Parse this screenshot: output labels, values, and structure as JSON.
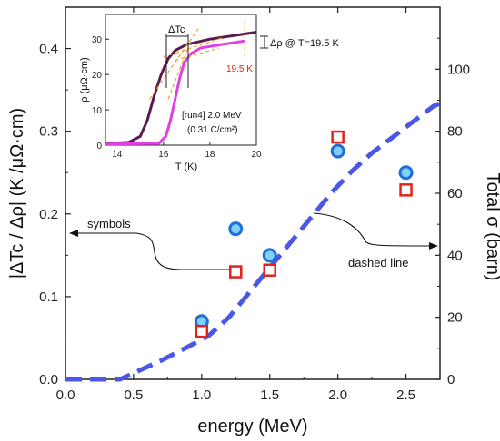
{
  "chart_data": [
    {
      "type": "scatter",
      "xlabel": "energy (MeV)",
      "ylabel_left": "|ΔTc / Δρ| (K /μΩ·cm)",
      "ylabel_right": "Total σ (barn)",
      "xlim": [
        0,
        2.75
      ],
      "ylim_left": [
        0,
        0.45
      ],
      "ylim_right": [
        0,
        120
      ],
      "x_ticks": [
        "0.0",
        "0.5",
        "1.0",
        "1.5",
        "2.0",
        "2.5"
      ],
      "y_left_ticks": [
        "0.0",
        "0.1",
        "0.2",
        "0.3",
        "0.4"
      ],
      "y_right_ticks": [
        "0",
        "20",
        "40",
        "60",
        "80",
        "100"
      ],
      "series": [
        {
          "marker": "circle",
          "color": "#1f6fd6",
          "fill": "#7fd0ff",
          "points": [
            [
              1.0,
              0.07
            ],
            [
              1.25,
              0.182
            ],
            [
              1.5,
              0.15
            ],
            [
              2.0,
              0.276
            ],
            [
              2.5,
              0.25
            ]
          ]
        },
        {
          "marker": "square",
          "color": "#e2231a",
          "fill": "#ffffff",
          "points": [
            [
              1.0,
              0.058
            ],
            [
              1.25,
              0.13
            ],
            [
              1.5,
              0.132
            ],
            [
              2.0,
              0.293
            ],
            [
              2.5,
              0.229
            ]
          ]
        },
        {
          "line": "dashed",
          "axis": "right",
          "color": "#4a57e8",
          "points": [
            [
              0.0,
              0
            ],
            [
              0.4,
              0
            ],
            [
              0.5,
              2
            ],
            [
              0.7,
              6
            ],
            [
              0.9,
              10.5
            ],
            [
              1.05,
              14
            ],
            [
              1.2,
              20
            ],
            [
              1.35,
              28
            ],
            [
              1.5,
              36
            ],
            [
              1.65,
              44
            ],
            [
              1.8,
              52
            ],
            [
              1.95,
              60
            ],
            [
              2.1,
              67
            ],
            [
              2.25,
              73
            ],
            [
              2.4,
              78
            ],
            [
              2.55,
              83
            ],
            [
              2.7,
              88
            ],
            [
              2.75,
              89
            ]
          ]
        }
      ],
      "annotations": {
        "symbols": "symbols",
        "dashed_line": "dashed line"
      }
    },
    {
      "type": "line",
      "xlabel": "T (K)",
      "ylabel": "ρ (μΩ·cm)",
      "xlim": [
        13.5,
        20
      ],
      "ylim": [
        0,
        37
      ],
      "x_ticks": [
        "14",
        "16",
        "18",
        "20"
      ],
      "y_ticks": [
        "0",
        "10",
        "20",
        "30"
      ],
      "series": [
        {
          "color": "#5a1a4f",
          "points": [
            [
              13.5,
              0.5
            ],
            [
              14.5,
              0.8
            ],
            [
              15.0,
              2.5
            ],
            [
              15.3,
              7
            ],
            [
              15.6,
              14
            ],
            [
              15.9,
              20
            ],
            [
              16.2,
              24.5
            ],
            [
              16.5,
              26.8
            ],
            [
              17.0,
              28.5
            ],
            [
              18.0,
              30
            ],
            [
              19.0,
              31
            ],
            [
              20.0,
              32
            ]
          ]
        },
        {
          "color": "#e040e0",
          "points": [
            [
              13.5,
              0.3
            ],
            [
              15.8,
              0.5
            ],
            [
              16.1,
              2.5
            ],
            [
              16.3,
              7
            ],
            [
              16.5,
              13
            ],
            [
              16.7,
              19
            ],
            [
              16.9,
              23.5
            ],
            [
              17.2,
              26
            ],
            [
              17.6,
              27.5
            ],
            [
              18.5,
              28.5
            ],
            [
              19.5,
              29.5
            ]
          ]
        }
      ],
      "annotations": {
        "delta_tc": "ΔTc",
        "delta_rho": "Δρ @ T=19.5 K",
        "marker_label": "19.5 K",
        "run_line1": "[run4] 2.0 MeV",
        "run_line2": "(0.31 C/cm²)"
      }
    }
  ]
}
